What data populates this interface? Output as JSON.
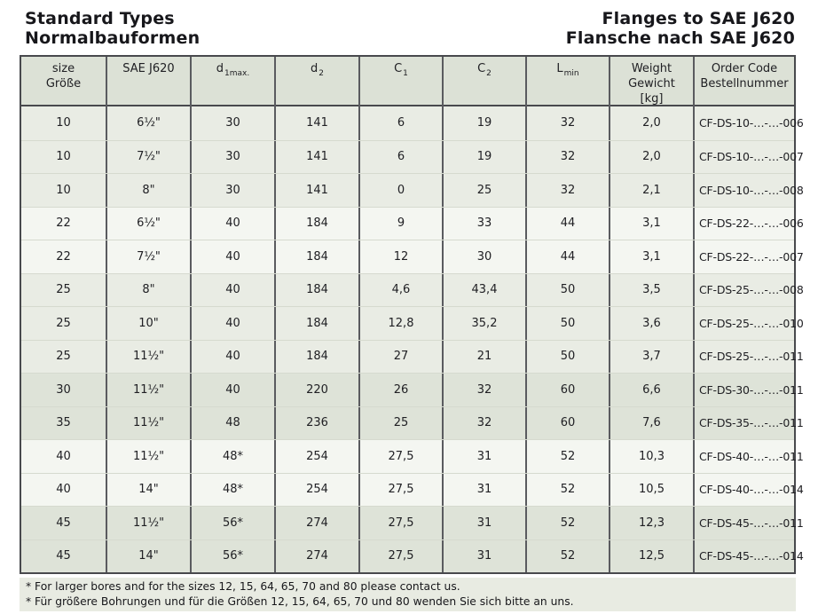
{
  "header": {
    "title_en": "Standard Types",
    "title_de": "Normalbauformen",
    "right_title_en": "Flanges to SAE J620",
    "right_title_de": "Flansche nach SAE J620"
  },
  "colors": {
    "header_bg": "#dce1d6",
    "row_light": "#f4f6f1",
    "row_mid": "#e9ece4",
    "row_dark": "#dee3d8",
    "footnote_bg": "#e8ebe2",
    "border_dark": "#48494d",
    "border_vertical": "#5a5b5f",
    "text": "#202024"
  },
  "table": {
    "columns": [
      {
        "id": "size",
        "lines": [
          "size",
          "Größe"
        ]
      },
      {
        "id": "sae-j620",
        "lines": [
          "SAE J620"
        ]
      },
      {
        "id": "d1max",
        "base": "d",
        "sub": "1max."
      },
      {
        "id": "d2",
        "base": "d",
        "sub": "2"
      },
      {
        "id": "c1",
        "base": "C",
        "sub": "1"
      },
      {
        "id": "c2",
        "base": "C",
        "sub": "2"
      },
      {
        "id": "lmin",
        "base": "L",
        "sub": "min"
      },
      {
        "id": "weight",
        "lines": [
          "Weight",
          "Gewicht",
          "[kg]"
        ]
      },
      {
        "id": "order-code",
        "lines": [
          "Order Code",
          "Bestellnummer"
        ]
      }
    ],
    "rows": [
      {
        "shade": "mid",
        "cells": [
          "10",
          "6½\"",
          "30",
          "141",
          "6",
          "19",
          "32",
          "2,0",
          "CF-DS-10-…-…-006"
        ]
      },
      {
        "shade": "mid",
        "cells": [
          "10",
          "7½\"",
          "30",
          "141",
          "6",
          "19",
          "32",
          "2,0",
          "CF-DS-10-…-…-007"
        ]
      },
      {
        "shade": "mid",
        "cells": [
          "10",
          "8\"",
          "30",
          "141",
          "0",
          "25",
          "32",
          "2,1",
          "CF-DS-10-…-…-008"
        ]
      },
      {
        "shade": "light",
        "cells": [
          "22",
          "6½\"",
          "40",
          "184",
          "9",
          "33",
          "44",
          "3,1",
          "CF-DS-22-…-…-006"
        ]
      },
      {
        "shade": "light",
        "cells": [
          "22",
          "7½\"",
          "40",
          "184",
          "12",
          "30",
          "44",
          "3,1",
          "CF-DS-22-…-…-007"
        ]
      },
      {
        "shade": "mid",
        "cells": [
          "25",
          "8\"",
          "40",
          "184",
          "4,6",
          "43,4",
          "50",
          "3,5",
          "CF-DS-25-…-…-008"
        ]
      },
      {
        "shade": "mid",
        "cells": [
          "25",
          "10\"",
          "40",
          "184",
          "12,8",
          "35,2",
          "50",
          "3,6",
          "CF-DS-25-…-…-010"
        ]
      },
      {
        "shade": "mid",
        "cells": [
          "25",
          "11½\"",
          "40",
          "184",
          "27",
          "21",
          "50",
          "3,7",
          "CF-DS-25-…-…-011"
        ]
      },
      {
        "shade": "dark",
        "cells": [
          "30",
          "11½\"",
          "40",
          "220",
          "26",
          "32",
          "60",
          "6,6",
          "CF-DS-30-…-…-011"
        ]
      },
      {
        "shade": "dark",
        "cells": [
          "35",
          "11½\"",
          "48",
          "236",
          "25",
          "32",
          "60",
          "7,6",
          "CF-DS-35-…-…-011"
        ]
      },
      {
        "shade": "light",
        "cells": [
          "40",
          "11½\"",
          "48*",
          "254",
          "27,5",
          "31",
          "52",
          "10,3",
          "CF-DS-40-…-…-011"
        ]
      },
      {
        "shade": "light",
        "cells": [
          "40",
          "14\"",
          "48*",
          "254",
          "27,5",
          "31",
          "52",
          "10,5",
          "CF-DS-40-…-…-014"
        ]
      },
      {
        "shade": "dark",
        "cells": [
          "45",
          "11½\"",
          "56*",
          "274",
          "27,5",
          "31",
          "52",
          "12,3",
          "CF-DS-45-…-…-011"
        ]
      },
      {
        "shade": "dark",
        "cells": [
          "45",
          "14\"",
          "56*",
          "274",
          "27,5",
          "31",
          "52",
          "12,5",
          "CF-DS-45-…-…-014"
        ]
      }
    ]
  },
  "footnotes": [
    "* For larger bores and for the sizes 12, 15, 64, 65, 70 and 80 please contact us.",
    "* Für größere Bohrungen und für die Größen 12, 15, 64, 65, 70 und 80 wenden Sie sich bitte an uns."
  ]
}
